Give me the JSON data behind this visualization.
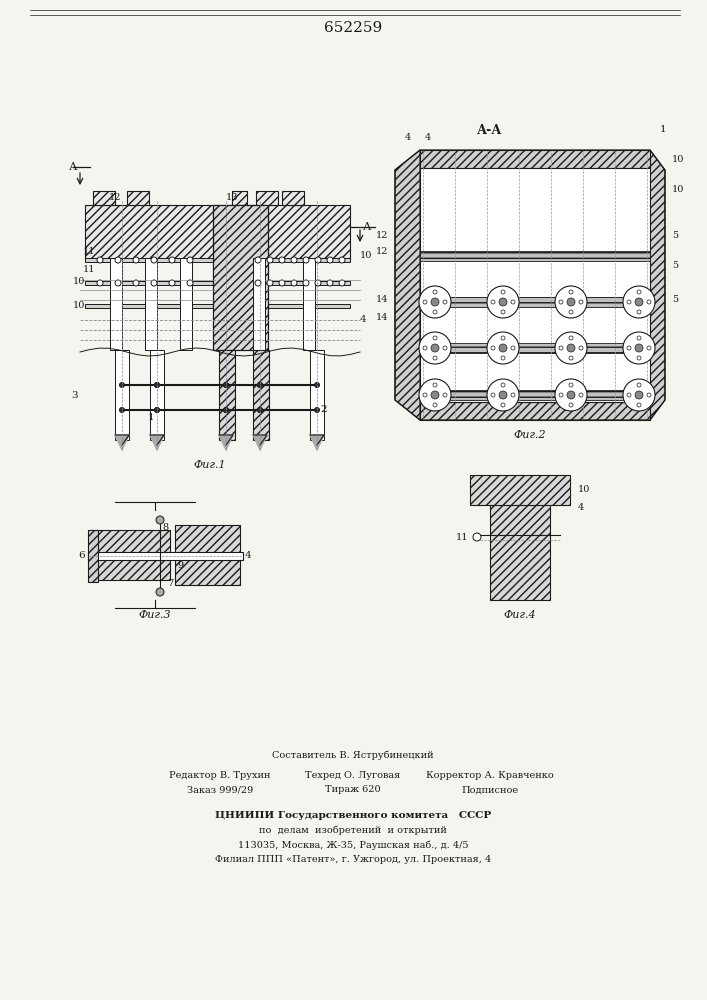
{
  "title": "652259",
  "background_color": "#f5f5f0",
  "line_color": "#1a1a1a",
  "hatch_color": "#1a1a1a",
  "fig1_label": "Фиг.1",
  "fig2_label": "Фиг.2",
  "fig3_label": "Фиг.3",
  "fig4_label": "Фиг.4",
  "section_label": "А-А",
  "footer_line1": "Составитель В. Яструбинецкий",
  "footer_line2": "Редактор В. Трухин",
  "footer_line3": "Техред О. Луговая",
  "footer_line4": "Тираж 620",
  "footer_line5": "Корректор А. Кравченко",
  "footer_line6": "Подписное",
  "footer_line7": "Заказ 999/29",
  "footer_org": "ЦНИИПИ Государственного комитета   СССР",
  "footer_org2": "по  делам  изобретений  и открытий",
  "footer_org3": "113035, Москва, Ж-35, Раушская наб., д. 4/5",
  "footer_org4": "Филиал ППП «Патент», г. Ужгород, ул. Проектная, 4"
}
